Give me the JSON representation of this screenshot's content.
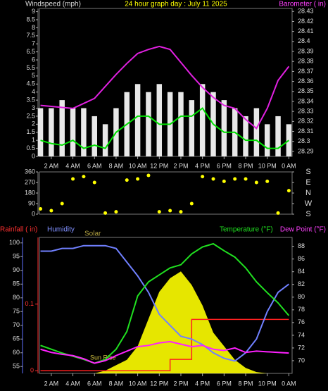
{
  "chart_data": [
    {
      "type": "combo",
      "title": "24 hour graph day : July 11 2025",
      "ylabel": "Windspeed (mph)",
      "y2label": "Barometer ( in)",
      "x": [
        1,
        2,
        3,
        4,
        5,
        6,
        7,
        8,
        9,
        10,
        11,
        12,
        13,
        14,
        15,
        16,
        17,
        18,
        19,
        20,
        21,
        22,
        23,
        24
      ],
      "xlim": [
        0.9,
        24.3
      ],
      "xticks": [
        {
          "value": 2,
          "label": "2 AM"
        },
        {
          "value": 4,
          "label": "4 AM"
        },
        {
          "value": 6,
          "label": "6 AM"
        },
        {
          "value": 8,
          "label": "8 AM"
        },
        {
          "value": 10,
          "label": "10 AM"
        },
        {
          "value": 12,
          "label": "12 PM"
        },
        {
          "value": 14,
          "label": "2 PM"
        },
        {
          "value": 16,
          "label": "4 PM"
        },
        {
          "value": 18,
          "label": "6 PM"
        },
        {
          "value": 20,
          "label": "8 PM"
        },
        {
          "value": 22,
          "label": "10 PM"
        },
        {
          "value": 24,
          "label": "0 AM"
        }
      ],
      "ylim": [
        0,
        9.2
      ],
      "yticks": [
        0,
        0.5,
        1,
        1.5,
        2,
        2.5,
        3,
        3.5,
        4,
        4.5,
        5,
        5.5,
        6,
        6.5,
        7,
        7.5,
        8,
        8.5,
        9
      ],
      "y2lim": [
        28.285,
        28.433
      ],
      "y2ticks": [
        28.29,
        28.3,
        28.31,
        28.32,
        28.33,
        28.34,
        28.35,
        28.36,
        28.37,
        28.38,
        28.39,
        28.4,
        28.41,
        28.42,
        28.43
      ],
      "series": [
        {
          "kind": "bar",
          "color": "#e8e8e8",
          "values": [
            3,
            3,
            3.5,
            3,
            3,
            2.5,
            2,
            3,
            4,
            4.5,
            4,
            4.5,
            4,
            4,
            3.5,
            4.5,
            4,
            3.5,
            3,
            2.5,
            3,
            2,
            2.5,
            2
          ]
        },
        {
          "kind": "line",
          "color": "#00e000",
          "values": [
            1,
            0.8,
            0.7,
            1,
            0.5,
            0.7,
            0.5,
            1.5,
            2,
            2.5,
            2.5,
            2,
            2,
            2.5,
            2.5,
            3,
            2,
            1.5,
            1.5,
            1,
            1,
            0.5,
            0.5,
            1
          ]
        },
        {
          "kind": "line",
          "axis": "y2",
          "color": "#e020e0",
          "values": [
            28.336,
            28.335,
            28.334,
            28.333,
            28.338,
            28.343,
            28.355,
            28.367,
            28.378,
            28.388,
            28.392,
            28.395,
            28.392,
            28.379,
            28.366,
            28.354,
            28.344,
            28.336,
            28.333,
            28.322,
            28.313,
            28.333,
            28.361,
            28.375
          ]
        }
      ]
    },
    {
      "type": "scatter",
      "x": [
        1,
        2,
        3,
        4,
        5,
        6,
        7,
        8,
        9,
        10,
        11,
        12,
        13,
        14,
        15,
        16,
        17,
        18,
        19,
        20,
        21,
        22,
        23,
        24
      ],
      "xlim": [
        0.9,
        24.3
      ],
      "ylim": [
        0,
        360
      ],
      "yticks": [
        0,
        90,
        180,
        270,
        360
      ],
      "y2lim": [
        0,
        360
      ],
      "y2ticks": [
        {
          "value": 360,
          "label": "S"
        },
        {
          "value": 270,
          "label": "E"
        },
        {
          "value": 180,
          "label": "N"
        },
        {
          "value": 90,
          "label": "W"
        },
        {
          "value": 0,
          "label": "S"
        }
      ],
      "series": [
        {
          "kind": "dots",
          "color": "#ffff00",
          "values": [
            45,
            30,
            90,
            300,
            320,
            270,
            10,
            20,
            290,
            300,
            330,
            20,
            30,
            20,
            90,
            320,
            300,
            280,
            300,
            300,
            270,
            280,
            10,
            200
          ]
        }
      ]
    },
    {
      "type": "combo",
      "rainlabel": "Rainfall ( in)",
      "ylabel": "Humidity",
      "solarlabel": "Solar",
      "y2label": "Temperature (°F)",
      "y3label": "Dew Point (°F)",
      "annotation": "Sun Rise",
      "x": [
        1,
        2,
        3,
        4,
        5,
        6,
        7,
        8,
        9,
        10,
        11,
        12,
        13,
        14,
        15,
        16,
        17,
        18,
        19,
        20,
        21,
        22,
        23,
        24
      ],
      "xlim": [
        0.9,
        24.3
      ],
      "xticks": [
        {
          "value": 2,
          "label": "2 AM"
        },
        {
          "value": 4,
          "label": "4 AM"
        },
        {
          "value": 6,
          "label": "6 AM"
        },
        {
          "value": 8,
          "label": "8 AM"
        },
        {
          "value": 10,
          "label": "10 AM"
        },
        {
          "value": 12,
          "label": "12 PM"
        },
        {
          "value": 14,
          "label": "2 PM"
        },
        {
          "value": 16,
          "label": "4 PM"
        },
        {
          "value": 18,
          "label": "6 PM"
        },
        {
          "value": 20,
          "label": "8 PM"
        },
        {
          "value": 22,
          "label": "10 PM"
        },
        {
          "value": 24,
          "label": "0 AM"
        }
      ],
      "ylim": [
        52.5,
        102
      ],
      "yticks": [
        55,
        60,
        65,
        70,
        75,
        80,
        85,
        90,
        95,
        100
      ],
      "y2lim": [
        68,
        89.4
      ],
      "y2ticks": [
        70,
        72,
        74,
        76,
        78,
        80,
        82,
        84,
        86,
        88
      ],
      "rainlim": [
        -0.004,
        0.2
      ],
      "rainticks": [
        0,
        0.1
      ],
      "solarlim": [
        0,
        1000
      ],
      "series": [
        {
          "kind": "area",
          "axis": "solar",
          "color": "#ffff00",
          "values": [
            0,
            0,
            0,
            0,
            0,
            0,
            20,
            60,
            100,
            200,
            400,
            600,
            700,
            750,
            650,
            500,
            300,
            200,
            100,
            40,
            10,
            0,
            0,
            0
          ]
        },
        {
          "kind": "step",
          "axis": "rain",
          "color": "#ff2020",
          "values": [
            0,
            0,
            0,
            0,
            0,
            0,
            0,
            0,
            0,
            0,
            0,
            0,
            0.017,
            0.017,
            0.077,
            0.077,
            0.077,
            0.077,
            0.077,
            0.077,
            0.077,
            0.077,
            0.077,
            0.077
          ]
        },
        {
          "kind": "line",
          "color": "#7080ff",
          "values": [
            97,
            97,
            98,
            98,
            99,
            99,
            99,
            98,
            93,
            88,
            82,
            74,
            70,
            66,
            65,
            63,
            60,
            58,
            57,
            60,
            65,
            75,
            82,
            85
          ]
        },
        {
          "kind": "line",
          "axis": "y2",
          "color": "#20e020",
          "values": [
            72.4,
            71.8,
            71.2,
            70.7,
            70.2,
            69.6,
            70.2,
            71.8,
            74.6,
            80.2,
            82.4,
            83.5,
            84.6,
            85.1,
            86.8,
            87.9,
            88.4,
            87.3,
            86.3,
            84.6,
            82.4,
            80.7,
            79.1,
            77.1
          ]
        },
        {
          "kind": "line",
          "axis": "y2",
          "color": "#ff20ff",
          "values": [
            71.8,
            71.3,
            71,
            70.8,
            70.3,
            69.6,
            70,
            70.8,
            71.5,
            72.2,
            72.4,
            72.8,
            73,
            72.6,
            72.2,
            72.4,
            71.8,
            71.6,
            72,
            71.3,
            71.5,
            71.4,
            71.3,
            71.2
          ]
        }
      ]
    }
  ]
}
